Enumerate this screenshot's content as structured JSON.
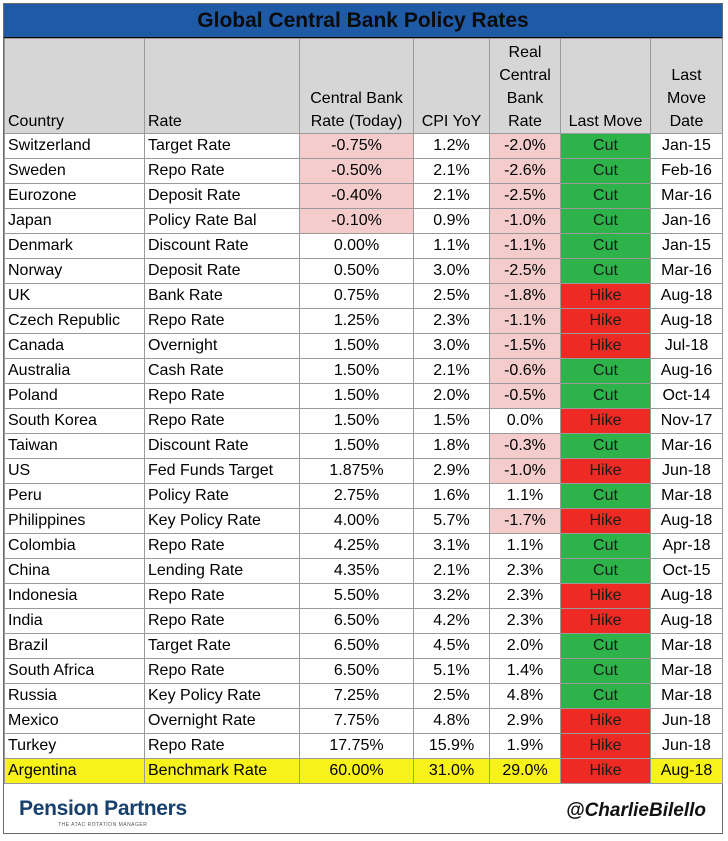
{
  "title": "Global Central Bank Policy Rates",
  "headers": {
    "country": "Country",
    "rate": "Rate",
    "cb_rate": "Central Bank Rate (Today)",
    "cpi": "CPI YoY",
    "real_rate": "Real Central Bank Rate",
    "last_move": "Last Move",
    "last_move_date": "Last Move Date"
  },
  "rows": [
    {
      "country": "Switzerland",
      "rate": "Target Rate",
      "cb_rate": "-0.75%",
      "cpi": "1.2%",
      "real_rate": "-2.0%",
      "last_move": "Cut",
      "date": "Jan-15"
    },
    {
      "country": "Sweden",
      "rate": "Repo Rate",
      "cb_rate": "-0.50%",
      "cpi": "2.1%",
      "real_rate": "-2.6%",
      "last_move": "Cut",
      "date": "Feb-16"
    },
    {
      "country": "Eurozone",
      "rate": "Deposit Rate",
      "cb_rate": "-0.40%",
      "cpi": "2.1%",
      "real_rate": "-2.5%",
      "last_move": "Cut",
      "date": "Mar-16"
    },
    {
      "country": "Japan",
      "rate": "Policy Rate Bal",
      "cb_rate": "-0.10%",
      "cpi": "0.9%",
      "real_rate": "-1.0%",
      "last_move": "Cut",
      "date": "Jan-16"
    },
    {
      "country": "Denmark",
      "rate": "Discount Rate",
      "cb_rate": "0.00%",
      "cpi": "1.1%",
      "real_rate": "-1.1%",
      "last_move": "Cut",
      "date": "Jan-15"
    },
    {
      "country": "Norway",
      "rate": "Deposit Rate",
      "cb_rate": "0.50%",
      "cpi": "3.0%",
      "real_rate": "-2.5%",
      "last_move": "Cut",
      "date": "Mar-16"
    },
    {
      "country": "UK",
      "rate": "Bank Rate",
      "cb_rate": "0.75%",
      "cpi": "2.5%",
      "real_rate": "-1.8%",
      "last_move": "Hike",
      "date": "Aug-18"
    },
    {
      "country": "Czech Republic",
      "rate": "Repo Rate",
      "cb_rate": "1.25%",
      "cpi": "2.3%",
      "real_rate": "-1.1%",
      "last_move": "Hike",
      "date": "Aug-18"
    },
    {
      "country": "Canada",
      "rate": "Overnight",
      "cb_rate": "1.50%",
      "cpi": "3.0%",
      "real_rate": "-1.5%",
      "last_move": "Hike",
      "date": "Jul-18"
    },
    {
      "country": "Australia",
      "rate": "Cash Rate",
      "cb_rate": "1.50%",
      "cpi": "2.1%",
      "real_rate": "-0.6%",
      "last_move": "Cut",
      "date": "Aug-16"
    },
    {
      "country": "Poland",
      "rate": "Repo Rate",
      "cb_rate": "1.50%",
      "cpi": "2.0%",
      "real_rate": "-0.5%",
      "last_move": "Cut",
      "date": "Oct-14"
    },
    {
      "country": "South Korea",
      "rate": "Repo Rate",
      "cb_rate": "1.50%",
      "cpi": "1.5%",
      "real_rate": "0.0%",
      "last_move": "Hike",
      "date": "Nov-17"
    },
    {
      "country": "Taiwan",
      "rate": "Discount Rate",
      "cb_rate": "1.50%",
      "cpi": "1.8%",
      "real_rate": "-0.3%",
      "last_move": "Cut",
      "date": "Mar-16"
    },
    {
      "country": "US",
      "rate": "Fed Funds Target",
      "cb_rate": "1.875%",
      "cpi": "2.9%",
      "real_rate": "-1.0%",
      "last_move": "Hike",
      "date": "Jun-18"
    },
    {
      "country": "Peru",
      "rate": "Policy Rate",
      "cb_rate": "2.75%",
      "cpi": "1.6%",
      "real_rate": "1.1%",
      "last_move": "Cut",
      "date": "Mar-18"
    },
    {
      "country": "Philippines",
      "rate": "Key Policy Rate",
      "cb_rate": "4.00%",
      "cpi": "5.7%",
      "real_rate": "-1.7%",
      "last_move": "Hike",
      "date": "Aug-18"
    },
    {
      "country": "Colombia",
      "rate": "Repo Rate",
      "cb_rate": "4.25%",
      "cpi": "3.1%",
      "real_rate": "1.1%",
      "last_move": "Cut",
      "date": "Apr-18"
    },
    {
      "country": "China",
      "rate": "Lending Rate",
      "cb_rate": "4.35%",
      "cpi": "2.1%",
      "real_rate": "2.3%",
      "last_move": "Cut",
      "date": "Oct-15"
    },
    {
      "country": "Indonesia",
      "rate": "Repo Rate",
      "cb_rate": "5.50%",
      "cpi": "3.2%",
      "real_rate": "2.3%",
      "last_move": "Hike",
      "date": "Aug-18"
    },
    {
      "country": "India",
      "rate": "Repo Rate",
      "cb_rate": "6.50%",
      "cpi": "4.2%",
      "real_rate": "2.3%",
      "last_move": "Hike",
      "date": "Aug-18"
    },
    {
      "country": "Brazil",
      "rate": "Target Rate",
      "cb_rate": "6.50%",
      "cpi": "4.5%",
      "real_rate": "2.0%",
      "last_move": "Cut",
      "date": "Mar-18"
    },
    {
      "country": "South Africa",
      "rate": "Repo Rate",
      "cb_rate": "6.50%",
      "cpi": "5.1%",
      "real_rate": "1.4%",
      "last_move": "Cut",
      "date": "Mar-18"
    },
    {
      "country": "Russia",
      "rate": "Key Policy Rate",
      "cb_rate": "7.25%",
      "cpi": "2.5%",
      "real_rate": "4.8%",
      "last_move": "Cut",
      "date": "Mar-18"
    },
    {
      "country": "Mexico",
      "rate": "Overnight Rate",
      "cb_rate": "7.75%",
      "cpi": "4.8%",
      "real_rate": "2.9%",
      "last_move": "Hike",
      "date": "Jun-18"
    },
    {
      "country": "Turkey",
      "rate": "Repo Rate",
      "cb_rate": "17.75%",
      "cpi": "15.9%",
      "real_rate": "1.9%",
      "last_move": "Hike",
      "date": "Jun-18"
    },
    {
      "country": "Argentina",
      "rate": "Benchmark Rate",
      "cb_rate": "60.00%",
      "cpi": "31.0%",
      "real_rate": "29.0%",
      "last_move": "Hike",
      "date": "Aug-18",
      "highlight": true
    }
  ],
  "footer": {
    "logo": "Pension Partners",
    "logo_tagline": "THE ATAC ROTATION MANAGER",
    "handle": "@CharlieBilello"
  },
  "colors": {
    "title_bg": "#1f5aa6",
    "header_bg": "#d6d6d6",
    "negative_bg": "#f4cccc",
    "cut": "#2db34a",
    "hike": "#ee2a24",
    "highlight_row": "#f7f21a",
    "logo": "#17406e"
  }
}
